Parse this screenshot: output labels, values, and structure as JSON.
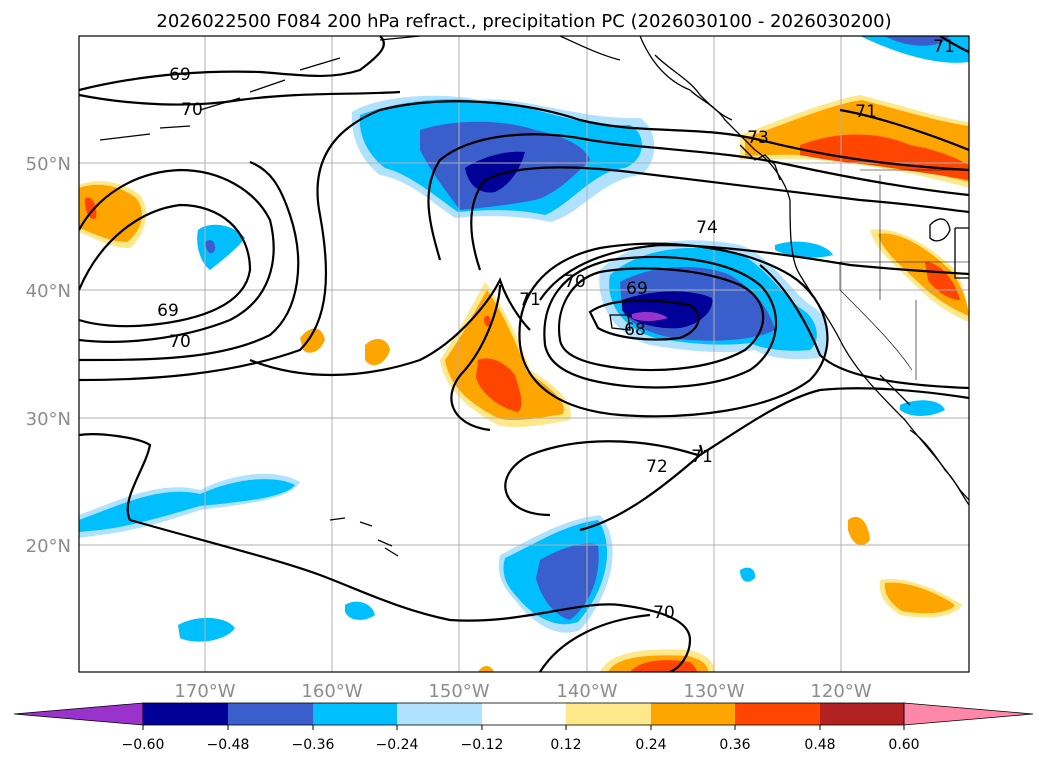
{
  "title": "2026022500 F084 200 hPa refract., precipitation PC (2026030100 - 2026030200)",
  "colors": {
    "neg_060": "#9933cc",
    "neg_048": "#000099",
    "neg_036": "#3a5fcd",
    "neg_024": "#00bfff",
    "neg_012": "#b0e2ff",
    "zero": "#ffffff",
    "pos_012": "#ffe88a",
    "pos_024": "#ffa500",
    "pos_036": "#ff4500",
    "pos_048": "#b22222",
    "pos_060": "#ff88aa"
  },
  "axes": {
    "lat_labels": [
      "50°N",
      "40°N",
      "30°N",
      "20°N"
    ],
    "lon_labels": [
      "170°W",
      "160°W",
      "150°W",
      "140°W",
      "130°W",
      "120°W"
    ]
  },
  "colorbar": {
    "ticks": [
      "−0.60",
      "−0.48",
      "−0.36",
      "−0.24",
      "−0.12",
      "0.12",
      "0.24",
      "0.36",
      "0.48",
      "0.60"
    ]
  },
  "contour_labels": [
    "69",
    "70",
    "69",
    "70",
    "71",
    "70",
    "69",
    "68",
    "74",
    "71",
    "73",
    "71",
    "72",
    "71",
    "70"
  ]
}
